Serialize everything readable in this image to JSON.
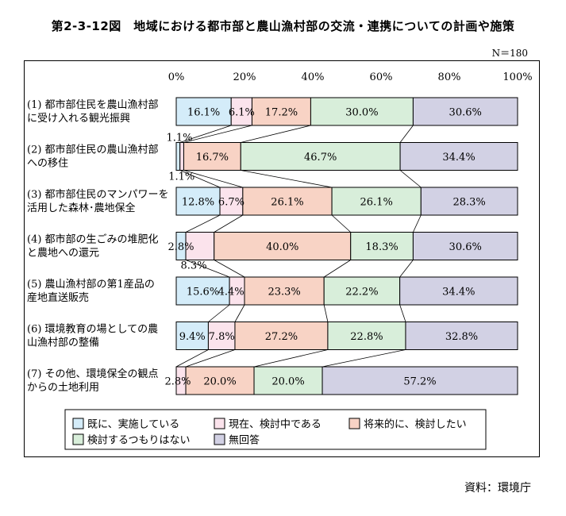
{
  "title": "第2-3-12図　地域における都市部と農山漁村部の交流・連携についての計画や施策",
  "sample_size": "N＝180",
  "source": "資料：環境庁",
  "colors": {
    "既に、実施している": "#d4ecf9",
    "現在、検討中である": "#fbe3ec",
    "将来的に、検討したい": "#f8d3c5",
    "検討するつもりはない": "#d8eeda",
    "無回答": "#d2d1e4"
  },
  "chart_data": {
    "type": "bar",
    "orientation": "horizontal",
    "stacked": true,
    "percent": true,
    "xlim": [
      0,
      100
    ],
    "x_ticks": [
      "0%",
      "20%",
      "40%",
      "60%",
      "80%",
      "100%"
    ],
    "categories": [
      [
        "(1) 都市部住民を農山漁村部",
        "に受け入れる観光振興"
      ],
      [
        "(2) 都市部住民の農山漁村部",
        "への移住"
      ],
      [
        "(3) 都市部住民のマンパワーを",
        "活用した森林･農地保全"
      ],
      [
        "(4) 都市部の生ごみの堆肥化",
        "と農地への還元"
      ],
      [
        "(5) 農山漁村部の第1産品の",
        "産地直送販売"
      ],
      [
        "(6) 環境教育の場としての農",
        "山漁村部の整備"
      ],
      [
        "(7) その他、環境保全の観点",
        "からの土地利用"
      ]
    ],
    "series": [
      {
        "name": "既に、実施している",
        "values": [
          16.1,
          1.1,
          12.8,
          2.8,
          15.6,
          9.4,
          0
        ]
      },
      {
        "name": "現在、検討中である",
        "values": [
          6.1,
          1.1,
          6.7,
          8.3,
          4.4,
          7.8,
          2.8
        ]
      },
      {
        "name": "将来的に、検討したい",
        "values": [
          17.2,
          16.7,
          26.1,
          40.0,
          23.3,
          27.2,
          20.0
        ]
      },
      {
        "name": "検討するつもりはない",
        "values": [
          30.0,
          46.7,
          26.1,
          18.3,
          22.2,
          22.8,
          20.0
        ]
      },
      {
        "name": "無回答",
        "values": [
          30.6,
          34.4,
          28.3,
          30.6,
          34.4,
          32.8,
          57.2
        ]
      }
    ],
    "data_labels": [
      [
        "16.1%",
        "6.1%",
        "17.2%",
        "30.0%",
        "30.6%"
      ],
      [
        "1.1%",
        "1.1%",
        "16.7%",
        "46.7%",
        "34.4%"
      ],
      [
        "12.8%",
        "6.7%",
        "26.1%",
        "26.1%",
        "28.3%"
      ],
      [
        "2.8%",
        "8.3%",
        "40.0%",
        "18.3%",
        "30.6%"
      ],
      [
        "15.6%",
        "4.4%",
        "23.3%",
        "22.2%",
        "34.4%"
      ],
      [
        "9.4%",
        "7.8%",
        "27.2%",
        "22.8%",
        "32.8%"
      ],
      [
        "",
        "2.8%",
        "20.0%",
        "20.0%",
        "57.2%"
      ]
    ],
    "legend_position": "bottom",
    "grid": false
  }
}
